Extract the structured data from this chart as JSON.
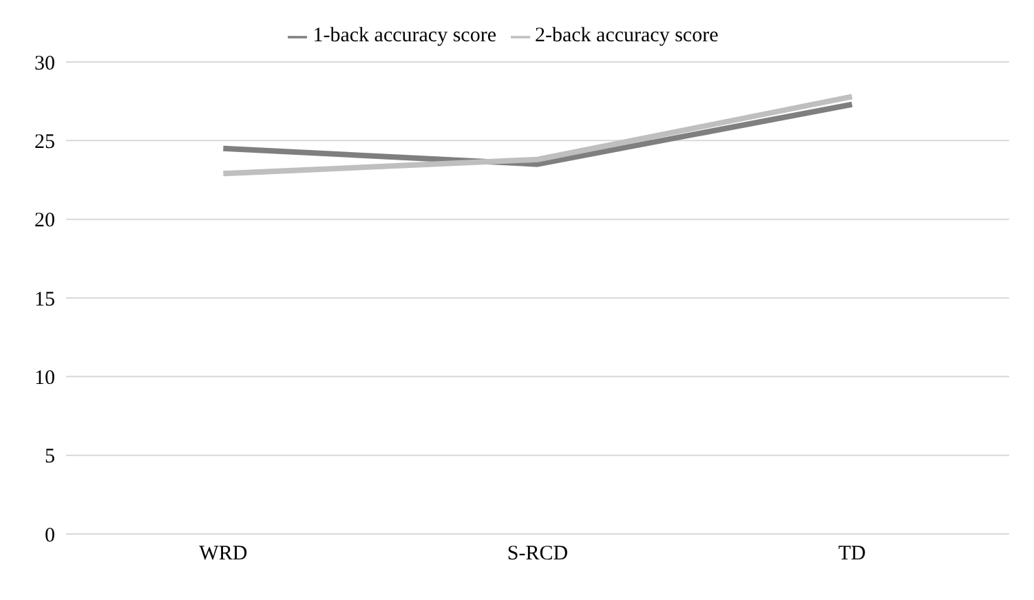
{
  "chart_data": {
    "type": "line",
    "categories": [
      "WRD",
      "S-RCD",
      "TD"
    ],
    "series": [
      {
        "name": "1-back accuracy score",
        "color": "#7f7f7f",
        "values": [
          24.5,
          23.5,
          27.3
        ]
      },
      {
        "name": "2-back accuracy score",
        "color": "#bfbfbf",
        "values": [
          22.9,
          23.8,
          27.8
        ]
      }
    ],
    "ylim": [
      0,
      30
    ],
    "yticks": [
      0,
      5,
      10,
      15,
      20,
      25,
      30
    ],
    "grid": "y",
    "legend": "top",
    "marker": "none",
    "line_style": "solid"
  }
}
